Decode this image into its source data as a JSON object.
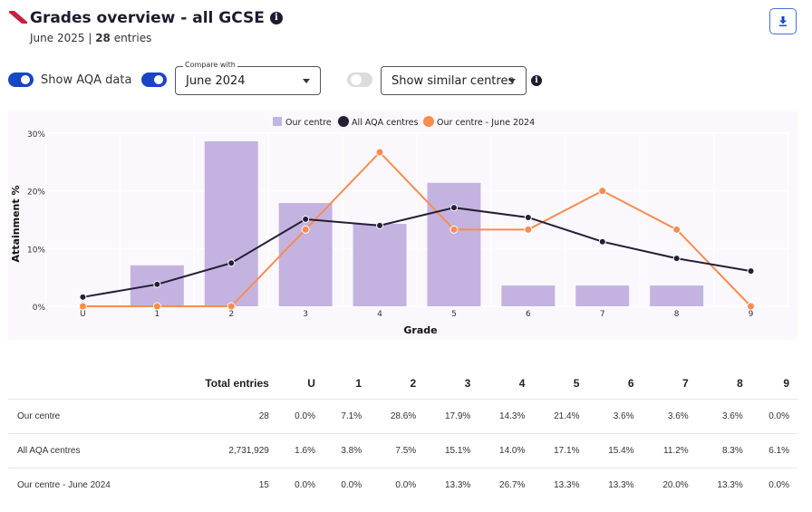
{
  "header": {
    "title": "Grades overview - all GCSE",
    "info_icon": "info-icon",
    "series_label": "June 2025",
    "separator": "|",
    "entries_count": "28",
    "entries_label": "entries",
    "download_icon": "download-icon"
  },
  "controls": {
    "show_aqa": {
      "label": "Show AQA data",
      "on": true
    },
    "compare": {
      "on": true,
      "legend": "Compare with",
      "value": "June 2024"
    },
    "similar": {
      "on": false,
      "value": "Show similar centres"
    },
    "info_icon": "info-icon"
  },
  "colors": {
    "accent": "#1945c4",
    "bar": "#c4b3e0",
    "aqa_line": "#231f35",
    "prev_line": "#fa8c4f",
    "logo": "#c8203f"
  },
  "chart_data": {
    "type": "bar",
    "title": "",
    "xlabel": "Grade",
    "ylabel": "Attainment %",
    "categories": [
      "U",
      "1",
      "2",
      "3",
      "4",
      "5",
      "6",
      "7",
      "8",
      "9"
    ],
    "ylim": [
      0,
      30
    ],
    "yticks": [
      0,
      10,
      20,
      30
    ],
    "ytick_labels": [
      "0%",
      "10%",
      "20%",
      "30%"
    ],
    "grid": true,
    "legend_position": "top-center",
    "series": [
      {
        "name": "Our centre",
        "kind": "bar",
        "values": [
          0.0,
          7.1,
          28.6,
          17.9,
          14.3,
          21.4,
          3.6,
          3.6,
          3.6,
          0.0
        ]
      },
      {
        "name": "All AQA centres",
        "kind": "line",
        "values": [
          1.6,
          3.8,
          7.5,
          15.1,
          14.0,
          17.1,
          15.4,
          11.2,
          8.3,
          6.1
        ]
      },
      {
        "name": "Our centre - June 2024",
        "kind": "line",
        "values": [
          0.0,
          0.0,
          0.0,
          13.3,
          26.7,
          13.3,
          13.3,
          20.0,
          13.3,
          0.0
        ]
      }
    ]
  },
  "table": {
    "headers": [
      "",
      "Total entries",
      "U",
      "1",
      "2",
      "3",
      "4",
      "5",
      "6",
      "7",
      "8",
      "9"
    ],
    "rows": [
      [
        "Our centre",
        "28",
        "0.0%",
        "7.1%",
        "28.6%",
        "17.9%",
        "14.3%",
        "21.4%",
        "3.6%",
        "3.6%",
        "3.6%",
        "0.0%"
      ],
      [
        "All AQA centres",
        "2,731,929",
        "1.6%",
        "3.8%",
        "7.5%",
        "15.1%",
        "14.0%",
        "17.1%",
        "15.4%",
        "11.2%",
        "8.3%",
        "6.1%"
      ],
      [
        "Our centre - June 2024",
        "15",
        "0.0%",
        "0.0%",
        "0.0%",
        "13.3%",
        "26.7%",
        "13.3%",
        "13.3%",
        "20.0%",
        "13.3%",
        "0.0%"
      ]
    ]
  }
}
